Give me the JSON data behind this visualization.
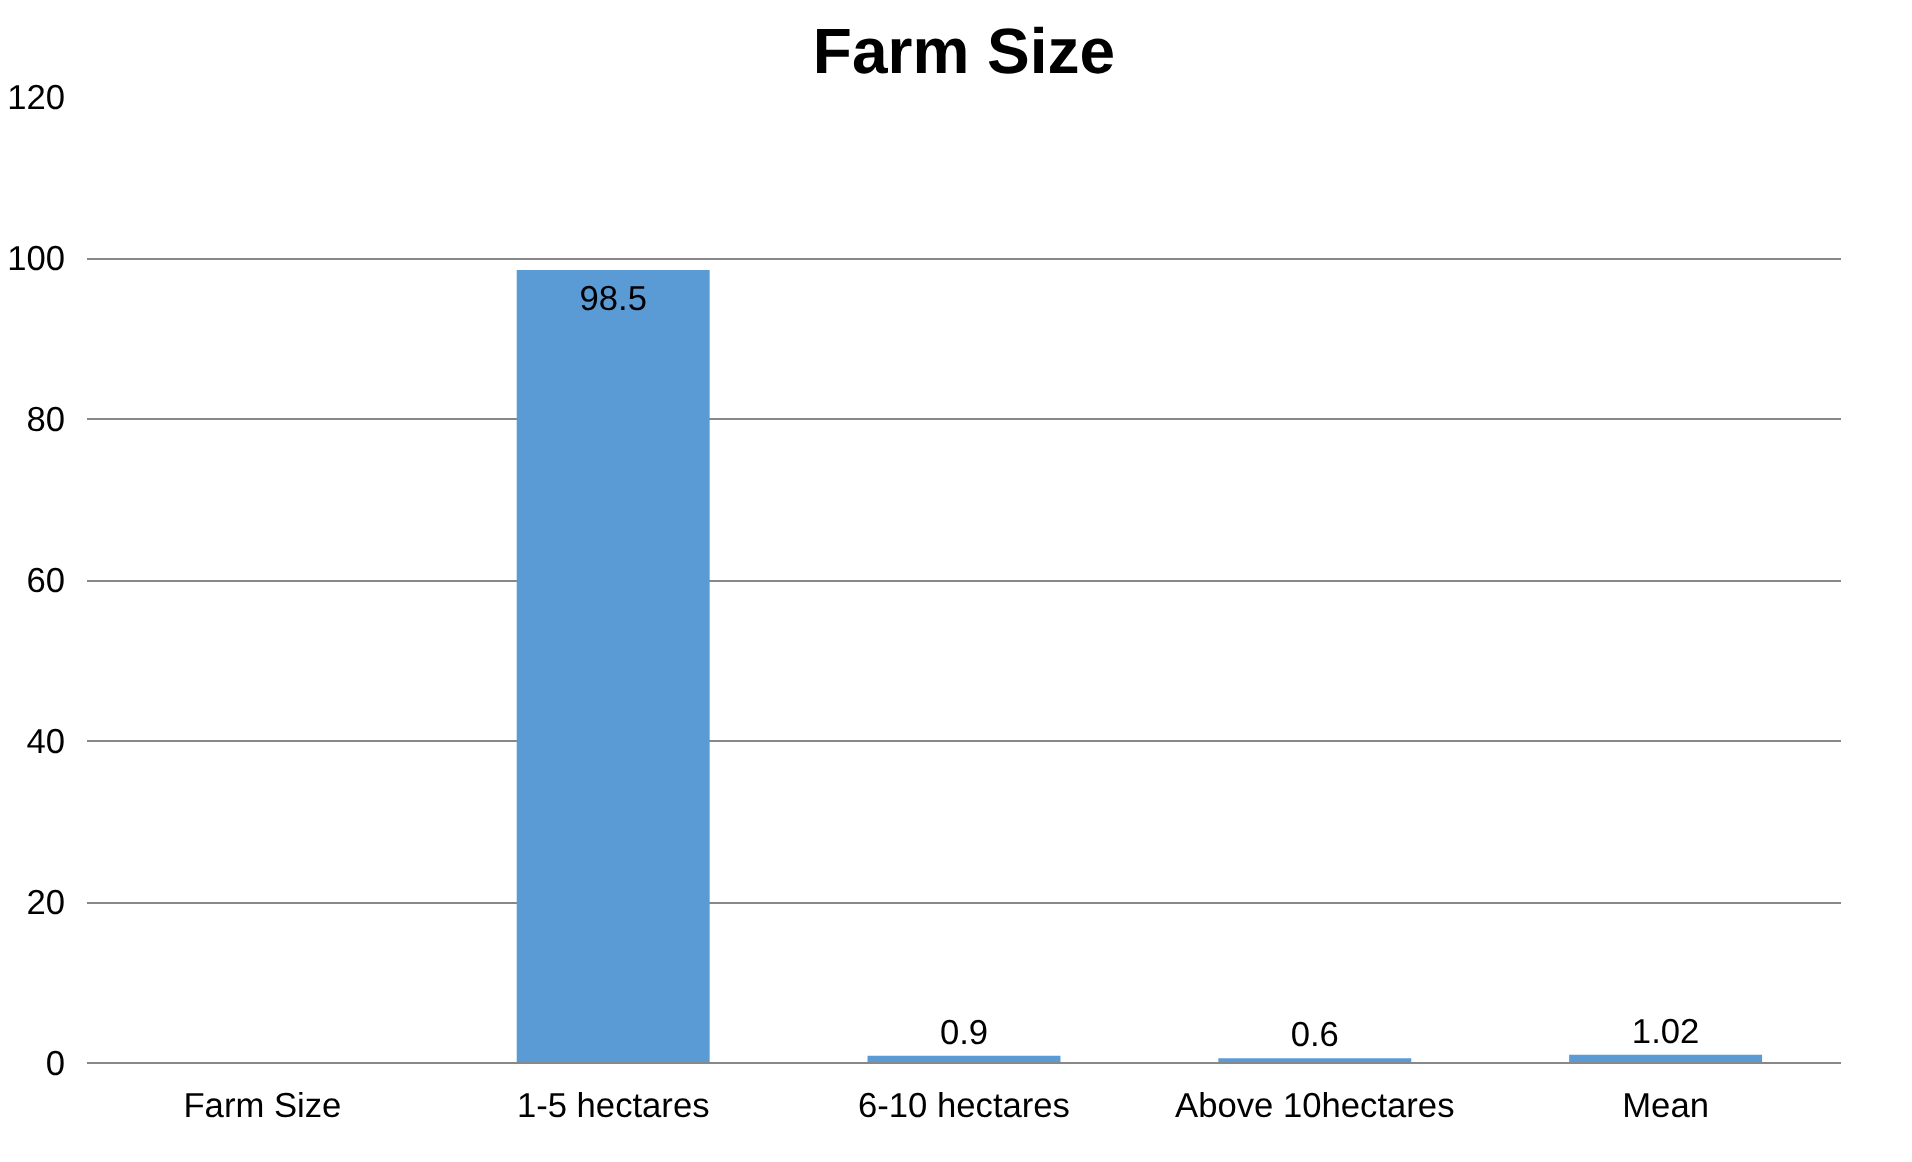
{
  "chart_data": {
    "type": "bar",
    "title": "Farm Size",
    "categories": [
      "Farm Size",
      "1-5 hectares",
      "6-10 hectares",
      "Above 10hectares",
      "Mean"
    ],
    "values": [
      null,
      98.5,
      0.9,
      0.6,
      1.02
    ],
    "color": "#5b9bd5",
    "ylim": [
      0,
      120
    ],
    "yticks": [
      0,
      20,
      40,
      60,
      80,
      100,
      120
    ],
    "grid": "y",
    "data_labels": true
  }
}
